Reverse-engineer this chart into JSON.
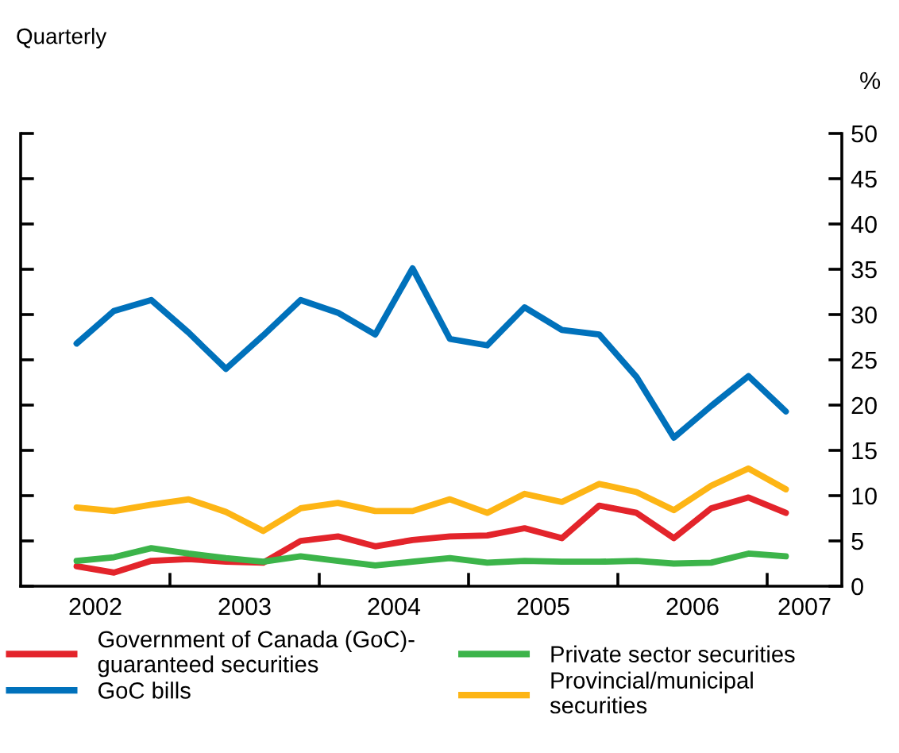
{
  "chart_data": {
    "type": "line",
    "subtitle": "Quarterly",
    "ylabel": "%",
    "x": [
      2002.375,
      2002.625,
      2002.875,
      2003.125,
      2003.375,
      2003.625,
      2003.875,
      2004.125,
      2004.375,
      2004.625,
      2004.875,
      2005.125,
      2005.375,
      2005.625,
      2005.875,
      2006.125,
      2006.375,
      2006.625,
      2006.875,
      2007.125
    ],
    "xlim": [
      2002,
      2007.5
    ],
    "xticks": [
      {
        "value": 2003,
        "label": null
      },
      {
        "value": 2004,
        "label": null
      },
      {
        "value": 2005,
        "label": null
      },
      {
        "value": 2006,
        "label": null
      },
      {
        "value": 2007,
        "label": null
      },
      {
        "value": 2002.5,
        "label": "2002"
      },
      {
        "value": 2003.5,
        "label": "2003"
      },
      {
        "value": 2004.5,
        "label": "2004"
      },
      {
        "value": 2005.5,
        "label": "2005"
      },
      {
        "value": 2006.5,
        "label": "2006"
      },
      {
        "value": 2007.25,
        "label": "2007"
      }
    ],
    "ylim": [
      0,
      50
    ],
    "yticks": [
      0,
      5,
      10,
      15,
      20,
      25,
      30,
      35,
      40,
      45,
      50
    ],
    "grid": false,
    "legend": "bottom",
    "marker": "none",
    "line_style": "solid",
    "series": [
      {
        "name": "Government of Canada (GoC)-\nguaranteed securities",
        "color": "#e3242b",
        "values": [
          2.2,
          1.5,
          2.8,
          3.0,
          2.7,
          2.6,
          5.0,
          5.5,
          4.4,
          5.1,
          5.5,
          5.6,
          6.4,
          5.3,
          8.9,
          8.1,
          5.3,
          8.6,
          9.8,
          8.1
        ]
      },
      {
        "name": "GoC bills",
        "color": "#0071bb",
        "values": [
          26.8,
          30.4,
          31.6,
          28.0,
          24.0,
          27.7,
          31.6,
          30.2,
          27.8,
          35.1,
          27.3,
          26.6,
          30.8,
          28.3,
          27.8,
          23.1,
          16.4,
          19.9,
          23.2,
          19.3
        ]
      },
      {
        "name": "Private sector securities",
        "color": "#3cb44a",
        "values": [
          2.8,
          3.2,
          4.2,
          3.6,
          3.1,
          2.7,
          3.3,
          2.8,
          2.3,
          2.7,
          3.1,
          2.6,
          2.8,
          2.7,
          2.7,
          2.8,
          2.5,
          2.6,
          3.6,
          3.3
        ]
      },
      {
        "name": "Provincial/municipal\nsecurities",
        "color": "#fdb515",
        "values": [
          8.7,
          8.3,
          9.0,
          9.6,
          8.2,
          6.1,
          8.6,
          9.2,
          8.3,
          8.3,
          9.6,
          8.1,
          10.2,
          9.3,
          11.3,
          10.4,
          8.4,
          11.1,
          13.0,
          10.7
        ]
      }
    ]
  }
}
